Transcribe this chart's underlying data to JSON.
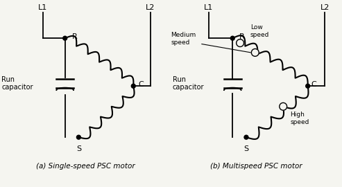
{
  "bg_color": "#f5f5f0",
  "line_color": "#000000",
  "text_color": "#000000",
  "fig_width": 4.93,
  "fig_height": 2.7,
  "dpi": 100,
  "label_a": "(a) Single-speed PSC motor",
  "label_b": "(b) Multispeed PSC motor",
  "diagram_a": {
    "L1_label": "L1",
    "L2_label": "L2",
    "R_label": "R",
    "C_label": "C",
    "S_label": "S",
    "run_cap_label": "Run\ncapacitor"
  },
  "diagram_b": {
    "L1_label": "L1",
    "L2_label": "L2",
    "R_label": "R",
    "C_label": "C",
    "S_label": "S",
    "run_cap_label": "Run\ncapacitor",
    "low_speed_label": "Low\nspeed",
    "medium_speed_label": "Medium\nspeed",
    "high_speed_label": "High\nspeed"
  }
}
